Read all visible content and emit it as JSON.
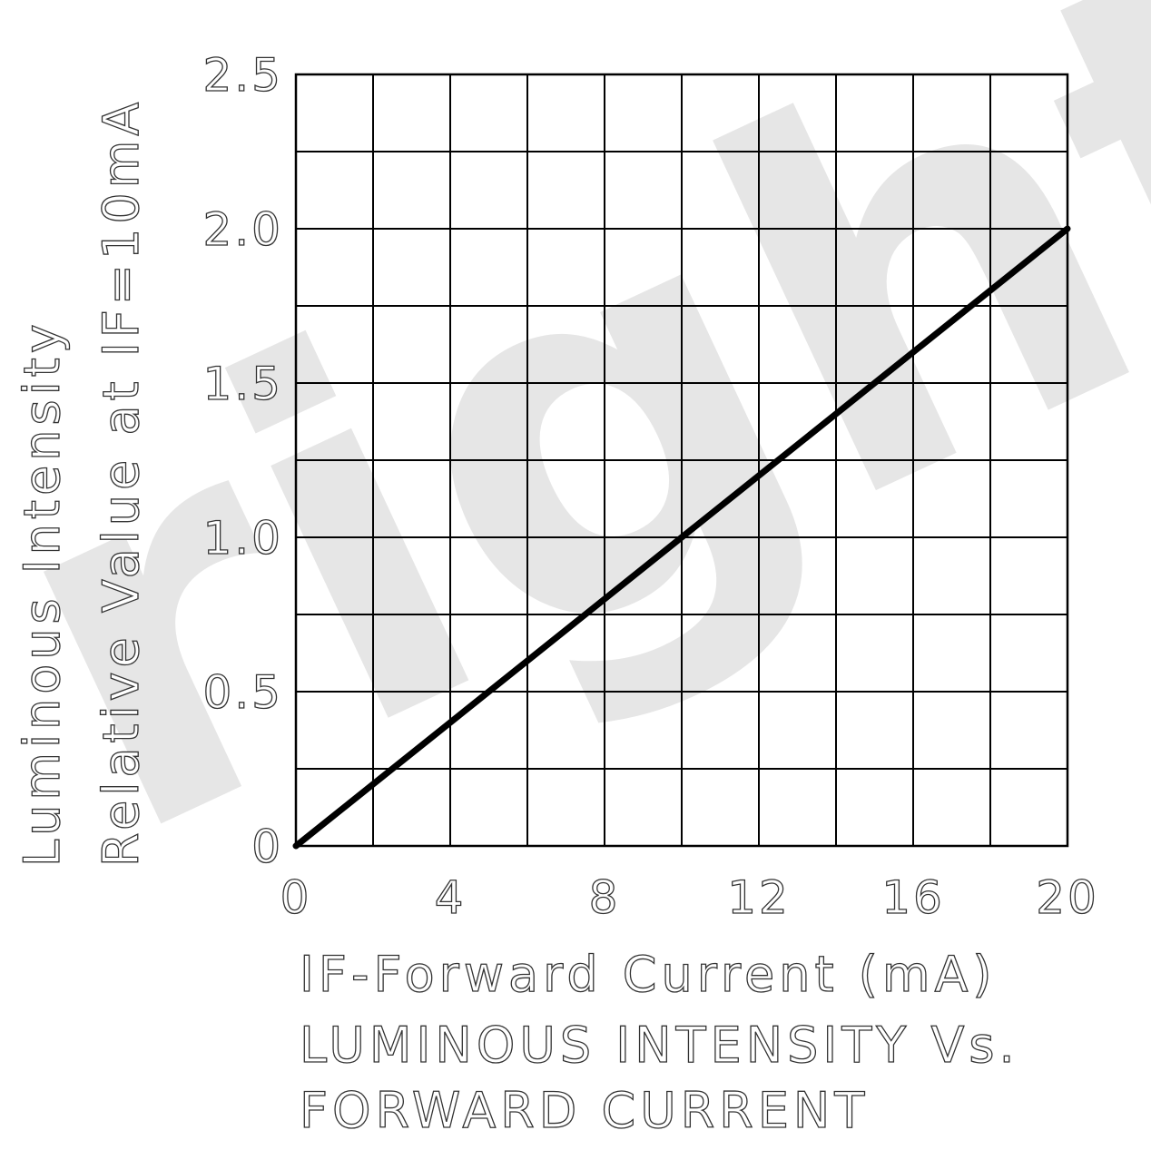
{
  "watermark": {
    "text": "right"
  },
  "chart_data": {
    "type": "line",
    "title": "LUMINOUS INTENSITY Vs. FORWARD CURRENT",
    "title_lines": [
      "LUMINOUS INTENSITY Vs.",
      "FORWARD CURRENT"
    ],
    "xlabel": "IF-Forward Current (mA)",
    "ylabel": "Luminous Intensity Relative Value at IF=10mA",
    "ylabel_lines": [
      "Luminous Intensity",
      "Relative Value at IF=10mA"
    ],
    "xlim": [
      0,
      20
    ],
    "ylim": [
      0,
      2.5
    ],
    "x_ticks": [
      "0",
      "4",
      "8",
      "12",
      "16",
      "20"
    ],
    "y_ticks": [
      "0",
      "0.5",
      "1.0",
      "1.5",
      "2.0",
      "2.5"
    ],
    "grid": true,
    "series": [
      {
        "x": [
          0,
          20
        ],
        "y": [
          0,
          2.0
        ],
        "color": "#000000"
      }
    ]
  }
}
